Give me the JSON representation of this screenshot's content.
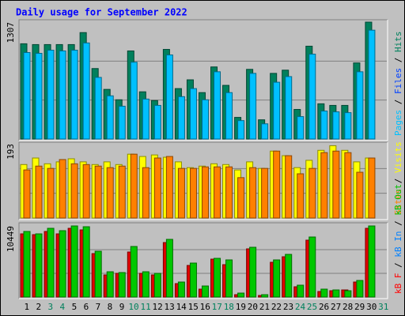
{
  "chart_data": [
    {
      "type": "bar",
      "title": "Daily usage for September 2022",
      "ylim": [
        0,
        1307
      ],
      "yticks": [
        1307
      ],
      "legend": [
        {
          "text": "Pages",
          "color": "#00c0ff"
        },
        {
          "text": "/"
        },
        {
          "text": "Files",
          "color": "#0040ff"
        },
        {
          "text": "/"
        },
        {
          "text": "Hits",
          "color": "#00805c"
        }
      ],
      "series": [
        {
          "color": "#00805c",
          "values": [
            1065,
            1056,
            1056,
            1056,
            1056,
            1190,
            788,
            555,
            439,
            985,
            528,
            430,
            1002,
            564,
            662,
            519,
            806,
            600,
            242,
            779,
            215,
            734,
            770,
            331,
            1038,
            394,
            376,
            376,
            851,
            1307,
            null
          ]
        },
        {
          "color": "#00c0ff",
          "values": [
            967,
            958,
            993,
            985,
            993,
            1074,
            689,
            483,
            367,
            859,
            447,
            376,
            940,
            474,
            564,
            439,
            752,
            519,
            206,
            734,
            170,
            635,
            698,
            251,
            949,
            313,
            304,
            295,
            752,
            1217,
            null
          ]
        }
      ]
    },
    {
      "type": "bar",
      "ylim": [
        0,
        193
      ],
      "yticks": [
        193
      ],
      "legend": [
        {
          "text": "Sites",
          "color": "#ff8000"
        },
        {
          "text": "/"
        },
        {
          "text": "Visits",
          "color": "#ffff00"
        }
      ],
      "series": [
        {
          "color": "#ffff00",
          "values": [
            139,
            156,
            141,
            146,
            154,
            146,
            139,
            146,
            139,
            166,
            160,
            164,
            158,
            146,
            131,
            135,
            141,
            139,
            125,
            146,
            129,
            174,
            162,
            131,
            150,
            176,
            188,
            176,
            146,
            156,
            null
          ]
        },
        {
          "color": "#ff8000",
          "values": [
            125,
            135,
            129,
            152,
            141,
            139,
            135,
            131,
            135,
            166,
            131,
            156,
            160,
            129,
            129,
            133,
            133,
            133,
            105,
            131,
            129,
            174,
            162,
            115,
            129,
            170,
            174,
            170,
            119,
            156,
            null
          ]
        }
      ]
    },
    {
      "type": "bar",
      "ylim": [
        0,
        10449
      ],
      "yticks": [
        10449
      ],
      "legend": [
        {
          "text": "kB F",
          "color": "#ff0000"
        },
        {
          "text": "/"
        },
        {
          "text": "kB In",
          "color": "#0080ff"
        },
        {
          "text": "/"
        },
        {
          "text": "kB Out",
          "color": "#00c000"
        }
      ],
      "categories": [
        "1",
        "2",
        "3",
        "4",
        "5",
        "6",
        "7",
        "8",
        "9",
        "10",
        "11",
        "12",
        "13",
        "14",
        "15",
        "16",
        "17",
        "18",
        "19",
        "20",
        "21",
        "22",
        "23",
        "24",
        "25",
        "26",
        "27",
        "28",
        "29",
        "30",
        "31"
      ],
      "category_colors": [
        "#000000",
        "#000000",
        "#00805c",
        "#00805c",
        "#000000",
        "#000000",
        "#000000",
        "#000000",
        "#000000",
        "#00805c",
        "#00805c",
        "#000000",
        "#000000",
        "#000000",
        "#000000",
        "#000000",
        "#00805c",
        "#00805c",
        "#000000",
        "#000000",
        "#000000",
        "#000000",
        "#000000",
        "#00805c",
        "#00805c",
        "#000000",
        "#000000",
        "#000000",
        "#000000",
        "#000000",
        "#00805c"
      ],
      "series": [
        {
          "color": "#e00000",
          "values": [
            9288,
            9172,
            9637,
            9288,
            10101,
            9869,
            6386,
            3251,
            3483,
            6618,
            3483,
            3251,
            8011,
            1974,
            4644,
            1161,
            5573,
            4760,
            348,
            7082,
            232,
            5108,
            5921,
            1509,
            8360,
            813,
            929,
            1045,
            2206,
            10101,
            null
          ]
        },
        {
          "color": "#00c800",
          "values": [
            9637,
            9288,
            10101,
            9753,
            10449,
            10333,
            6734,
            3715,
            3599,
            7430,
            3715,
            3483,
            8476,
            2206,
            4992,
            1625,
            5689,
            5457,
            581,
            7314,
            348,
            5457,
            6270,
            1742,
            8824,
            1161,
            1045,
            929,
            2438,
            10449,
            null
          ]
        }
      ]
    }
  ]
}
